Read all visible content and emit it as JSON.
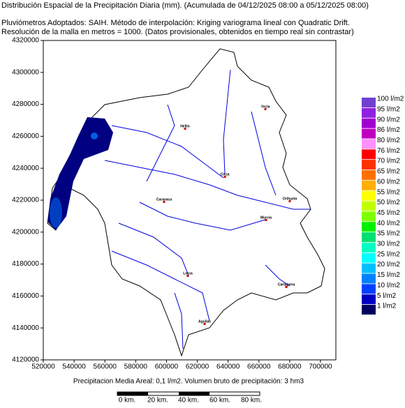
{
  "header": {
    "title": "Distribución Espacial de la Precipitación Diaria (mm). (Acumulada de 04/12/2025 08:00 a 05/12/2025 08:00)",
    "line2": "Pluviómetros Adoptados: SAIH.  Método de interpolación: Kriging variograma lineal con Quadratic Drift.",
    "line3": "Resolución de la malla en metros = 1000. (Datos provisionales, obtenidos en tiempo real sin contrastar)"
  },
  "map": {
    "xlim": [
      520000,
      710000
    ],
    "ylim": [
      4120000,
      4320000
    ],
    "xticks": [
      520000,
      540000,
      560000,
      580000,
      600000,
      620000,
      640000,
      660000,
      680000,
      700000
    ],
    "yticks": [
      4120000,
      4140000,
      4160000,
      4180000,
      4200000,
      4220000,
      4240000,
      4260000,
      4280000,
      4300000,
      4320000
    ],
    "cities": [
      "Yecla",
      "Hellin",
      "Cieza",
      "Caravaca",
      "Orihuela",
      "Murcia",
      "Lorca",
      "Cartagena",
      "Aguilas"
    ]
  },
  "legend": [
    {
      "label": "100 l/m2",
      "color": "#7040d0"
    },
    {
      "label": "95 l/m2",
      "color": "#9020e0"
    },
    {
      "label": "90 l/m2",
      "color": "#a000d0"
    },
    {
      "label": "86 l/m2",
      "color": "#c000c0"
    },
    {
      "label": "80 l/m2",
      "color": "#ff90ff"
    },
    {
      "label": "76 l/m2",
      "color": "#ff0000"
    },
    {
      "label": "70 l/m2",
      "color": "#ff3000"
    },
    {
      "label": "65 l/m2",
      "color": "#ff7000"
    },
    {
      "label": "60 l/m2",
      "color": "#ffb000"
    },
    {
      "label": "55 l/m2",
      "color": "#ffff00"
    },
    {
      "label": "50 l/m2",
      "color": "#c0ff00"
    },
    {
      "label": "45 l/m2",
      "color": "#80ff00"
    },
    {
      "label": "40 l/m2",
      "color": "#00f000"
    },
    {
      "label": "35 l/m2",
      "color": "#00e070"
    },
    {
      "label": "30 l/m2",
      "color": "#00ffc0"
    },
    {
      "label": "25 l/m2",
      "color": "#00ffff"
    },
    {
      "label": "20 l/m2",
      "color": "#00c0ff"
    },
    {
      "label": "15 l/m2",
      "color": "#0080ff"
    },
    {
      "label": "10 l/m2",
      "color": "#0040ff"
    },
    {
      "label": "5 l/m2",
      "color": "#0000c0"
    },
    {
      "label": "1 l/m2",
      "color": "#000060"
    }
  ],
  "footer": "Precipitacion Media Areal: 0,1 l/m2. Volumen bruto de precipitación: 3 hm3",
  "scale_bar": [
    "0 km.",
    "20 km.",
    "40 km.",
    "60 km.",
    "80 km."
  ]
}
